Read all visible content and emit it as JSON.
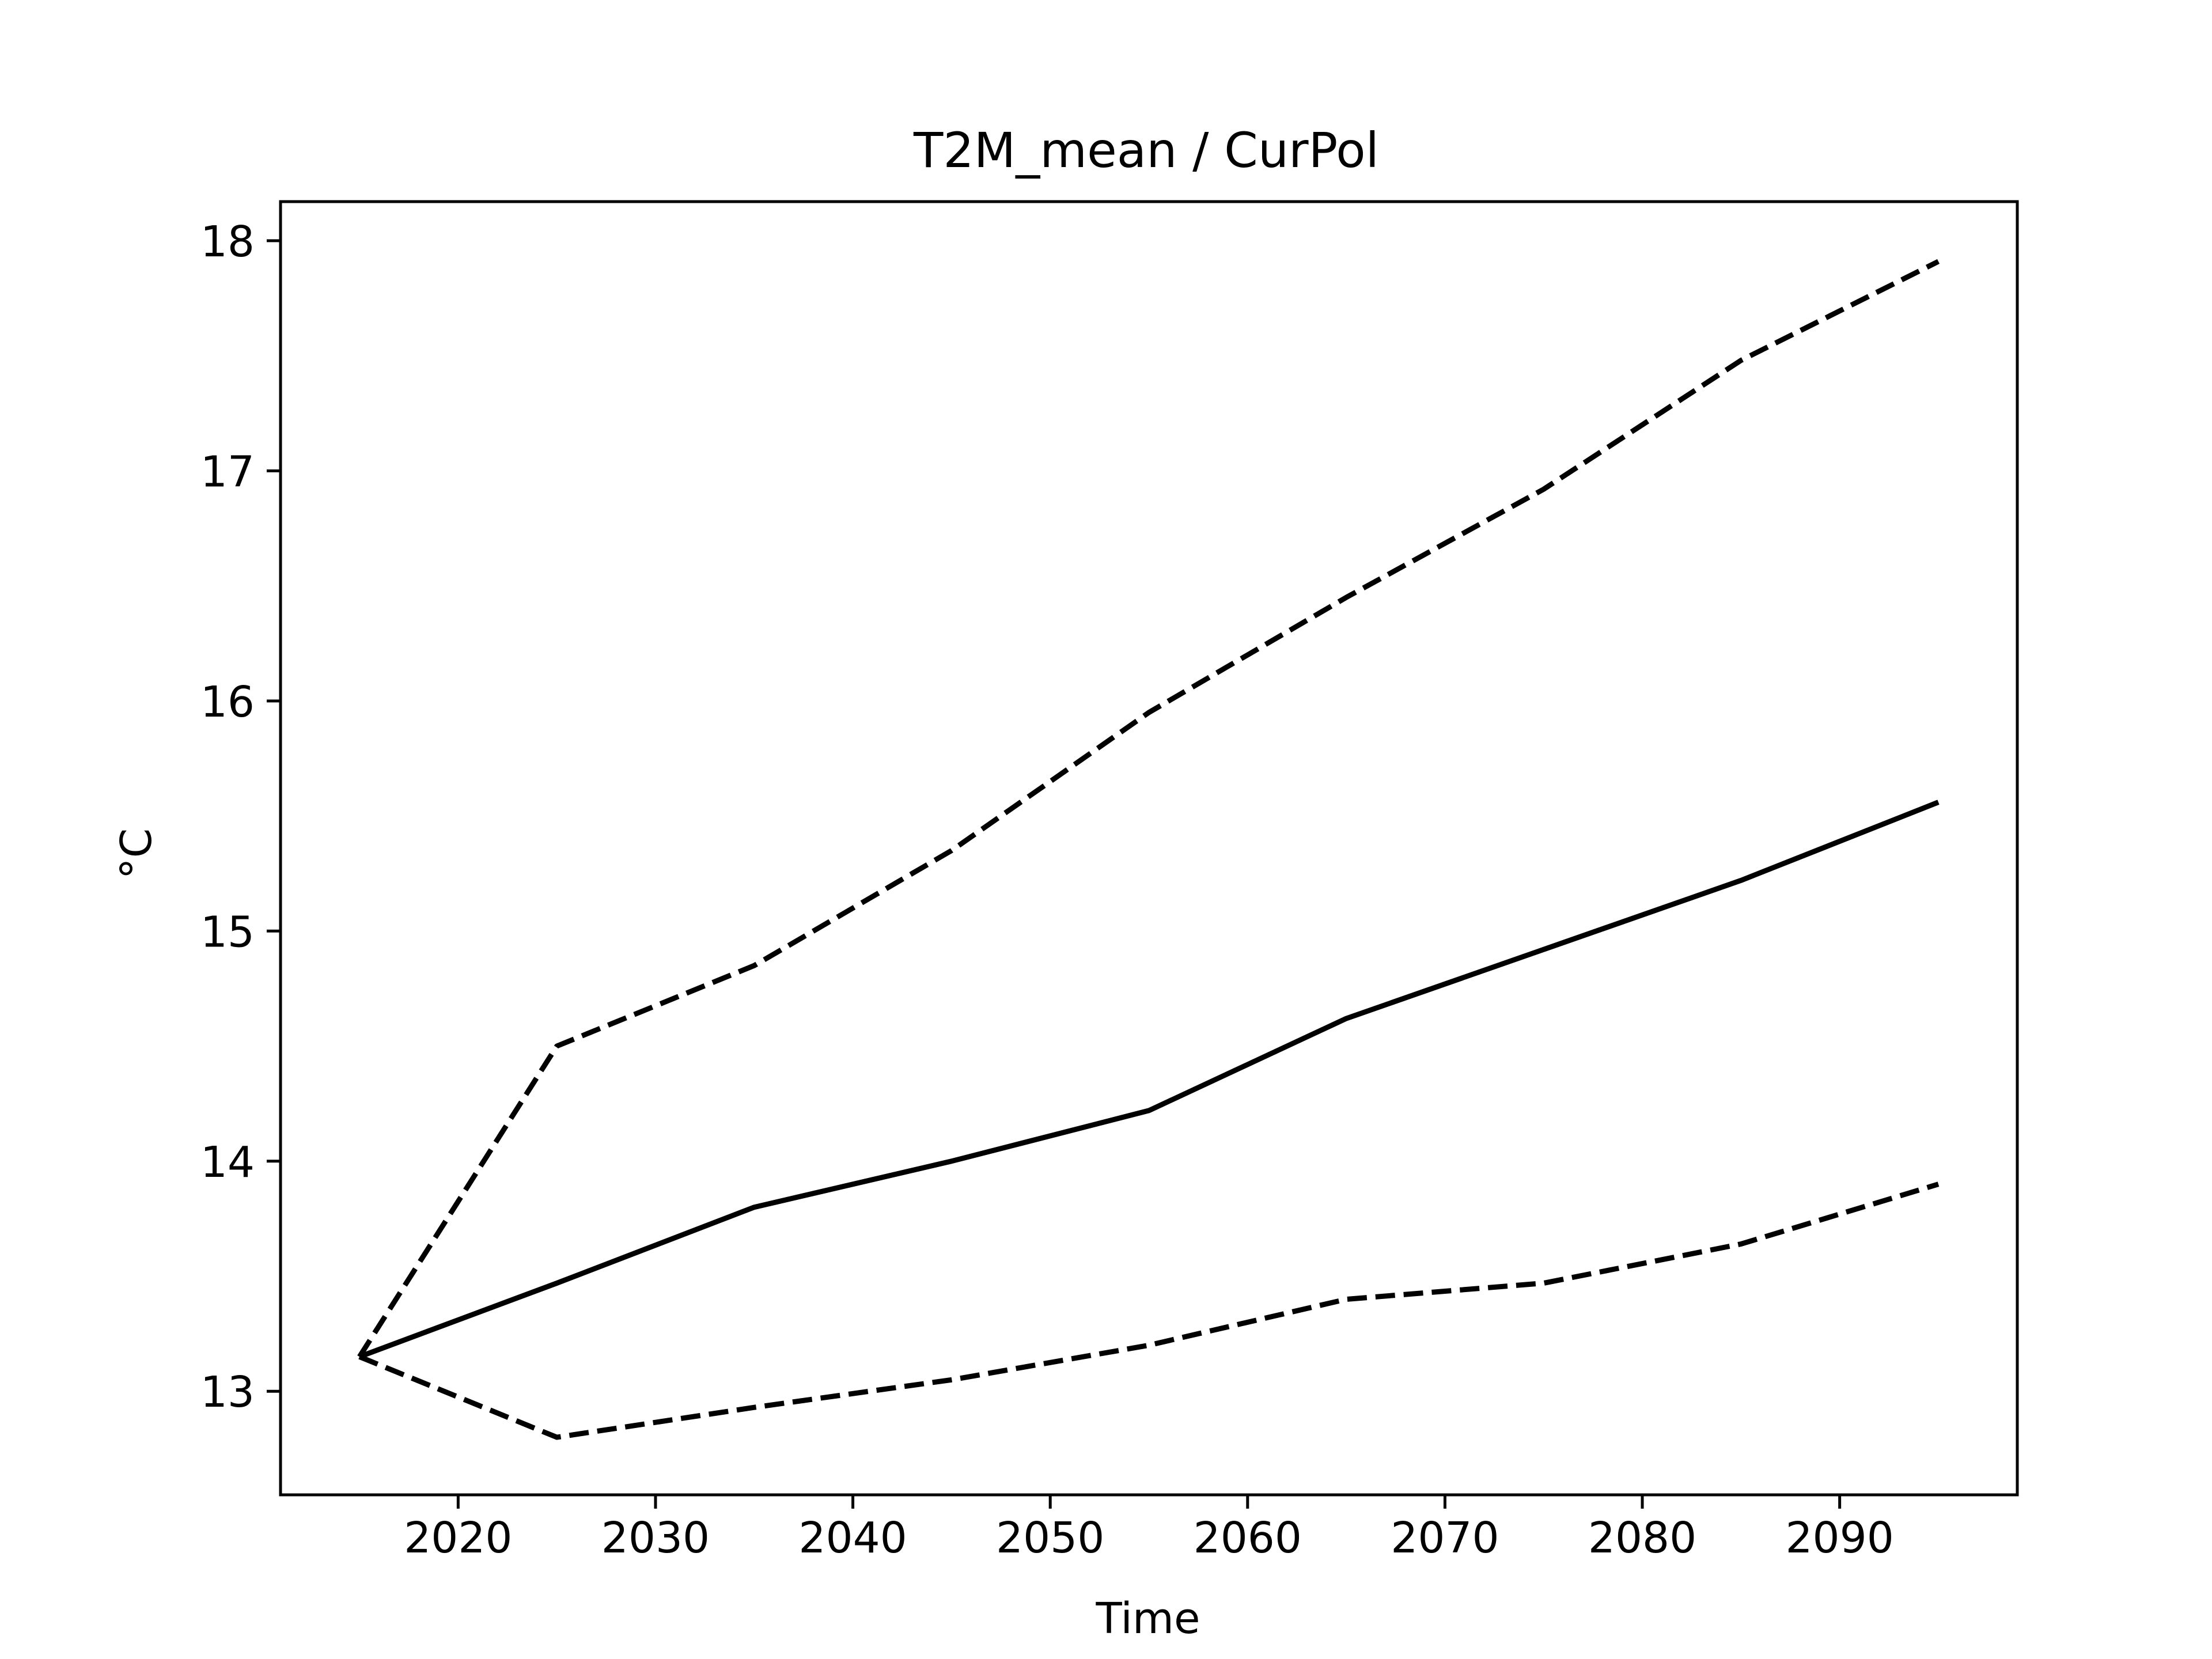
{
  "chart_data": {
    "type": "line",
    "title": "T2M_mean / CurPol",
    "xlabel": "Time",
    "ylabel": "°C",
    "xlim": [
      2011,
      2099
    ],
    "ylim": [
      12.55,
      18.17
    ],
    "xticks": [
      2020,
      2030,
      2040,
      2050,
      2060,
      2070,
      2080,
      2090
    ],
    "yticks": [
      13,
      14,
      15,
      16,
      17,
      18
    ],
    "grid": false,
    "x": [
      2015,
      2025,
      2035,
      2045,
      2055,
      2065,
      2075,
      2085,
      2095
    ],
    "series": [
      {
        "style": "solid",
        "values": [
          13.15,
          13.47,
          13.8,
          14.0,
          14.22,
          14.62,
          14.92,
          15.22,
          15.56
        ]
      },
      {
        "style": "dashed",
        "values": [
          13.15,
          14.5,
          14.85,
          15.35,
          15.95,
          16.45,
          16.92,
          17.48,
          17.91
        ]
      },
      {
        "style": "dashed",
        "values": [
          13.15,
          12.8,
          12.93,
          13.05,
          13.2,
          13.4,
          13.47,
          13.64,
          13.9
        ]
      }
    ]
  }
}
